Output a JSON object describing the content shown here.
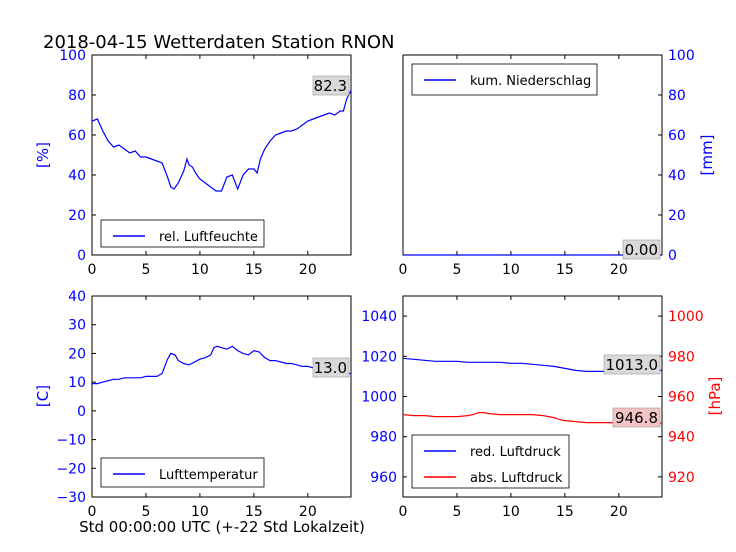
{
  "title": "2018-04-15 Wetterdaten Station RNON",
  "xlabel": "Std 00:00:00 UTC (+-22 Std Lokalzeit)",
  "colors": {
    "blue": "#0000ff",
    "red": "#ff0000",
    "black": "#000000",
    "grey_box": "#d9d9d9",
    "pink_box": "#f4c4c4"
  },
  "chart_data": [
    {
      "type": "line",
      "id": "humidity",
      "ylabel": "[%]",
      "xlim": [
        0,
        24
      ],
      "ylim": [
        0,
        100
      ],
      "x_ticks": [
        "0",
        "5",
        "10",
        "15",
        "20"
      ],
      "y_ticks": [
        "0",
        "20",
        "40",
        "60",
        "80",
        "100"
      ],
      "legend": {
        "placement": "lower-left",
        "label": "rel. Luftfeuchte"
      },
      "last_value_label": "82.3",
      "series": [
        {
          "name": "rel. Luftfeuchte",
          "color": "#0000ff",
          "x": [
            0,
            0.5,
            1,
            1.5,
            2,
            2.5,
            3,
            3.5,
            4,
            4.5,
            5,
            5.5,
            6,
            6.5,
            7,
            7.3,
            7.6,
            8,
            8.5,
            8.8,
            9,
            9.3,
            9.6,
            10,
            10.5,
            11,
            11.5,
            12,
            12.5,
            13,
            13.5,
            14,
            14.5,
            15,
            15.3,
            15.6,
            16,
            16.5,
            17,
            17.5,
            18,
            18.5,
            19,
            19.5,
            20,
            20.5,
            21,
            21.5,
            22,
            22.5,
            23,
            23.3,
            23.6,
            24
          ],
          "y": [
            67,
            68,
            62,
            57,
            54,
            55,
            53,
            51,
            52,
            49,
            49,
            48,
            47,
            46,
            39,
            34,
            33,
            36,
            42,
            48,
            45,
            44,
            41,
            38,
            36,
            34,
            32,
            32,
            39,
            40,
            33,
            40,
            43,
            43,
            41,
            48,
            53,
            57,
            60,
            61,
            62,
            62,
            63,
            65,
            67,
            68,
            69,
            70,
            71,
            70,
            72,
            72,
            78,
            82.3
          ]
        }
      ]
    },
    {
      "type": "line",
      "id": "precipitation",
      "ylabel": "[mm]",
      "xlim": [
        0,
        24
      ],
      "ylim": [
        0,
        100
      ],
      "x_ticks": [
        "0",
        "5",
        "10",
        "15",
        "20"
      ],
      "y_ticks": [
        "0",
        "20",
        "40",
        "60",
        "80",
        "100"
      ],
      "legend": {
        "placement": "upper-left",
        "label": "kum. Niederschlag"
      },
      "last_value_label": "0.00",
      "series": [
        {
          "name": "kum. Niederschlag",
          "color": "#0000ff",
          "x": [
            0,
            24
          ],
          "y": [
            0,
            0
          ]
        }
      ]
    },
    {
      "type": "line",
      "id": "temperature",
      "ylabel": "[C]",
      "xlim": [
        0,
        24
      ],
      "ylim": [
        -30,
        40
      ],
      "x_ticks": [
        "0",
        "5",
        "10",
        "15",
        "20"
      ],
      "y_ticks": [
        "−30",
        "−20",
        "−10",
        "0",
        "10",
        "20",
        "30",
        "40"
      ],
      "legend": {
        "placement": "lower-left",
        "label": "Lufttemperatur"
      },
      "last_value_label": "13.0",
      "series": [
        {
          "name": "Lufttemperatur",
          "color": "#0000ff",
          "x": [
            0,
            0.5,
            1,
            1.5,
            2,
            2.5,
            3,
            3.5,
            4,
            4.5,
            5,
            5.5,
            6,
            6.5,
            7,
            7.3,
            7.7,
            8,
            8.5,
            9,
            9.5,
            10,
            10.5,
            11,
            11.3,
            11.6,
            12,
            12.5,
            13,
            13.5,
            14,
            14.5,
            15,
            15.5,
            16,
            16.5,
            17,
            17.5,
            18,
            18.5,
            19,
            19.5,
            20,
            20.5,
            21,
            21.5,
            22,
            22.5,
            23,
            23.5,
            24
          ],
          "y": [
            9.5,
            9.5,
            10,
            10.5,
            11,
            11,
            11.5,
            11.5,
            11.5,
            11.5,
            12,
            12,
            12,
            13,
            18,
            20,
            19.5,
            17.5,
            16.5,
            16,
            17,
            18,
            18.5,
            19.5,
            22,
            22.5,
            22,
            21.5,
            22.5,
            21,
            20,
            19.5,
            21,
            20.5,
            18.5,
            17.5,
            17.5,
            17,
            16.5,
            16.5,
            16,
            15.5,
            15.5,
            15,
            14.5,
            14.5,
            14,
            13.5,
            13.5,
            13,
            13
          ]
        }
      ]
    },
    {
      "type": "line",
      "id": "pressure",
      "ylabel_right": "[hPa]",
      "xlim": [
        0,
        24
      ],
      "ylim_left": [
        950,
        1050
      ],
      "ylim_right": [
        910,
        1010
      ],
      "x_ticks": [
        "0",
        "5",
        "10",
        "15",
        "20"
      ],
      "y_ticks_left": [
        "960",
        "980",
        "1000",
        "1020",
        "1040"
      ],
      "y_ticks_right": [
        "920",
        "940",
        "960",
        "980",
        "1000"
      ],
      "legend": {
        "placement": "lower-left",
        "labels": [
          "red. Luftdruck",
          "abs. Luftdruck"
        ]
      },
      "last_value_labels": [
        "1013.0",
        "946.8"
      ],
      "series": [
        {
          "name": "red. Luftdruck",
          "color": "#0000ff",
          "axis": "left",
          "x": [
            0,
            1,
            2,
            3,
            4,
            5,
            6,
            7,
            8,
            9,
            10,
            11,
            12,
            13,
            14,
            15,
            16,
            17,
            18,
            19,
            20,
            21,
            22,
            23,
            24
          ],
          "y": [
            1019,
            1018.5,
            1018,
            1017.5,
            1017.5,
            1017.5,
            1017,
            1017,
            1017,
            1017,
            1016.5,
            1016.5,
            1016,
            1015.5,
            1015,
            1014,
            1013,
            1012.5,
            1012.5,
            1012.5,
            1013,
            1013,
            1013,
            1013,
            1013
          ]
        },
        {
          "name": "abs. Luftdruck",
          "color": "#ff0000",
          "axis": "right",
          "x": [
            0,
            1,
            2,
            3,
            4,
            5,
            6,
            6.5,
            7,
            7.5,
            8,
            9,
            10,
            11,
            12,
            13,
            14,
            14.5,
            15,
            16,
            17,
            18,
            19,
            20,
            21,
            22,
            23,
            24
          ],
          "y": [
            951,
            950.5,
            950.5,
            950,
            950,
            950,
            950.5,
            951,
            952,
            952,
            951.5,
            951,
            951,
            951,
            951,
            950.5,
            949.5,
            948.5,
            948,
            947.5,
            947,
            947,
            947,
            946.8,
            946.8,
            946.8,
            946.8,
            946.8
          ]
        }
      ]
    }
  ]
}
